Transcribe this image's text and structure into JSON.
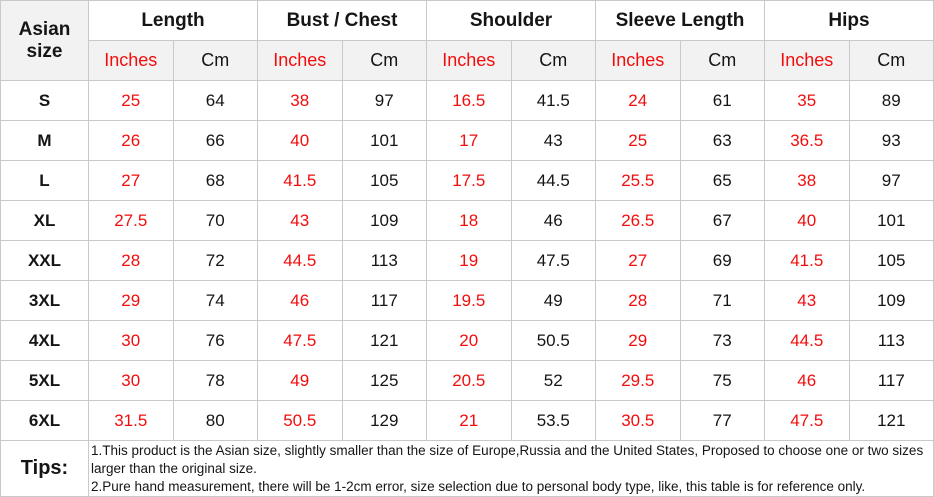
{
  "colors": {
    "accent_red": "#f20d0d",
    "header_bg": "#f2f2f2",
    "border": "#c9c9c9",
    "text": "#151515"
  },
  "table": {
    "corner_header": "Asian size",
    "groups": [
      {
        "label": "Length"
      },
      {
        "label": "Bust / Chest"
      },
      {
        "label": "Shoulder"
      },
      {
        "label": "Sleeve Length"
      },
      {
        "label": "Hips"
      }
    ],
    "unit_inches": "Inches",
    "unit_cm": "Cm",
    "rows": [
      {
        "size": "S",
        "values": [
          "25",
          "64",
          "38",
          "97",
          "16.5",
          "41.5",
          "24",
          "61",
          "35",
          "89"
        ]
      },
      {
        "size": "M",
        "values": [
          "26",
          "66",
          "40",
          "101",
          "17",
          "43",
          "25",
          "63",
          "36.5",
          "93"
        ]
      },
      {
        "size": "L",
        "values": [
          "27",
          "68",
          "41.5",
          "105",
          "17.5",
          "44.5",
          "25.5",
          "65",
          "38",
          "97"
        ]
      },
      {
        "size": "XL",
        "values": [
          "27.5",
          "70",
          "43",
          "109",
          "18",
          "46",
          "26.5",
          "67",
          "40",
          "101"
        ]
      },
      {
        "size": "XXL",
        "values": [
          "28",
          "72",
          "44.5",
          "113",
          "19",
          "47.5",
          "27",
          "69",
          "41.5",
          "105"
        ]
      },
      {
        "size": "3XL",
        "values": [
          "29",
          "74",
          "46",
          "117",
          "19.5",
          "49",
          "28",
          "71",
          "43",
          "109"
        ]
      },
      {
        "size": "4XL",
        "values": [
          "30",
          "76",
          "47.5",
          "121",
          "20",
          "50.5",
          "29",
          "73",
          "44.5",
          "113"
        ]
      },
      {
        "size": "5XL",
        "values": [
          "30",
          "78",
          "49",
          "125",
          "20.5",
          "52",
          "29.5",
          "75",
          "46",
          "117"
        ]
      },
      {
        "size": "6XL",
        "values": [
          "31.5",
          "80",
          "50.5",
          "129",
          "21",
          "53.5",
          "30.5",
          "77",
          "47.5",
          "121"
        ]
      }
    ],
    "tips": {
      "label": "Tips:",
      "lines": [
        "1.This product is the Asian size, slightly smaller than the size of Europe,Russia and the United States, Proposed to choose one or two sizes larger than the original size.",
        "2.Pure hand measurement, there will be 1-2cm error, size selection due to personal body type, like, this table is for reference only."
      ]
    }
  },
  "chart_data": {
    "type": "table",
    "title": "Asian size chart",
    "row_header": "Asian size",
    "column_groups": [
      "Length",
      "Bust / Chest",
      "Shoulder",
      "Sleeve Length",
      "Hips"
    ],
    "sub_columns": [
      "Inches",
      "Cm"
    ],
    "sizes": [
      "S",
      "M",
      "L",
      "XL",
      "XXL",
      "3XL",
      "4XL",
      "5XL",
      "6XL"
    ],
    "series": [
      {
        "name": "Length Inches",
        "values": [
          25,
          26,
          27,
          27.5,
          28,
          29,
          30,
          30,
          31.5
        ]
      },
      {
        "name": "Length Cm",
        "values": [
          64,
          66,
          68,
          70,
          72,
          74,
          76,
          78,
          80
        ]
      },
      {
        "name": "Bust / Chest Inches",
        "values": [
          38,
          40,
          41.5,
          43,
          44.5,
          46,
          47.5,
          49,
          50.5
        ]
      },
      {
        "name": "Bust / Chest Cm",
        "values": [
          97,
          101,
          105,
          109,
          113,
          117,
          121,
          125,
          129
        ]
      },
      {
        "name": "Shoulder Inches",
        "values": [
          16.5,
          17,
          17.5,
          18,
          19,
          19.5,
          20,
          20.5,
          21
        ]
      },
      {
        "name": "Shoulder Cm",
        "values": [
          41.5,
          43,
          44.5,
          46,
          47.5,
          49,
          50.5,
          52,
          53.5
        ]
      },
      {
        "name": "Sleeve Length Inches",
        "values": [
          24,
          25,
          25.5,
          26.5,
          27,
          28,
          29,
          29.5,
          30.5
        ]
      },
      {
        "name": "Sleeve Length Cm",
        "values": [
          61,
          63,
          65,
          67,
          69,
          71,
          73,
          75,
          77
        ]
      },
      {
        "name": "Hips Inches",
        "values": [
          35,
          36.5,
          38,
          40,
          41.5,
          43,
          44.5,
          46,
          47.5
        ]
      },
      {
        "name": "Hips Cm",
        "values": [
          89,
          93,
          97,
          101,
          105,
          109,
          113,
          117,
          121
        ]
      }
    ],
    "notes": [
      "1.This product is the Asian size, slightly smaller than the size of Europe,Russia and the United States, Proposed to choose one or two sizes larger than the original size.",
      "2.Pure hand measurement, there will be 1-2cm error, size selection due to personal body type, like, this table is for reference only."
    ]
  }
}
